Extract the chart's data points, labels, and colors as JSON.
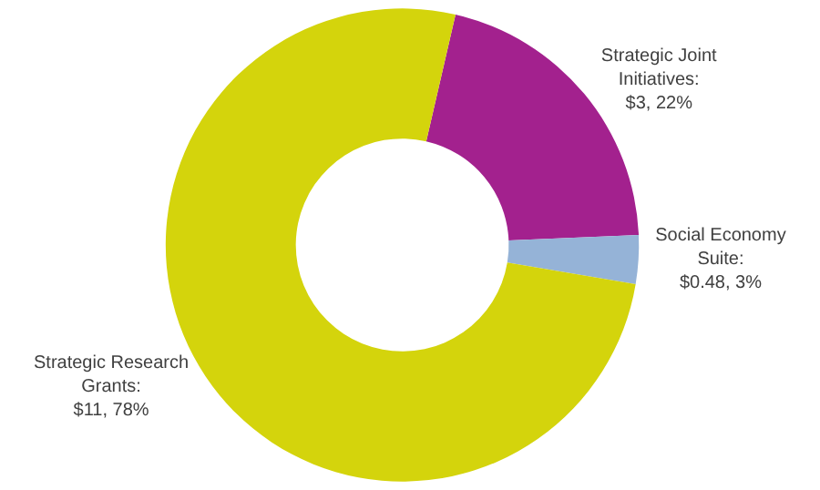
{
  "chart_data": {
    "type": "donut",
    "categories": [
      "Strategic Joint Initiatives",
      "Social Economy Suite",
      "Strategic Research Grants"
    ],
    "values": [
      3,
      0.48,
      11
    ],
    "colors": [
      "#a3218e",
      "#95b3d7",
      "#d4d40c"
    ],
    "value_labels": [
      ": $3, 22%",
      ": $0.48, 3%",
      ": $11, 78%"
    ],
    "legend": false
  }
}
